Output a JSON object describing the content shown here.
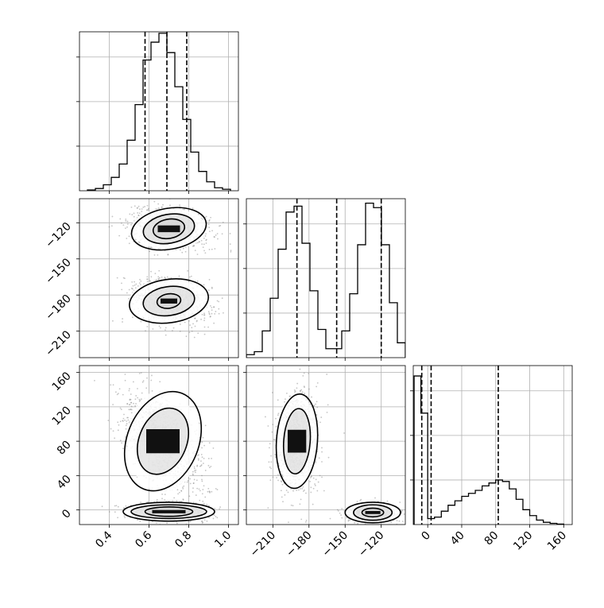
{
  "colors": {
    "axis": "#000000",
    "grid": "#b0b0b0",
    "mark": "#000000",
    "scatter": "#7f7f7f"
  },
  "chart_data": [
    {
      "panel": "p00",
      "type": "histogram",
      "variable_index": 0,
      "xlim": [
        0.25,
        1.05
      ],
      "ylim": [
        0,
        1.07
      ],
      "xgrid": [
        0.4,
        0.6,
        0.8,
        1.0
      ],
      "ygrid": [
        0.3,
        0.6,
        0.9
      ],
      "bins": [
        0.29,
        0.33,
        0.37,
        0.41,
        0.45,
        0.49,
        0.53,
        0.57,
        0.61,
        0.65,
        0.69,
        0.73,
        0.77,
        0.81,
        0.85,
        0.89,
        0.93,
        0.97,
        1.01
      ],
      "counts": [
        0.005,
        0.015,
        0.04,
        0.09,
        0.18,
        0.34,
        0.58,
        0.88,
        1.0,
        1.06,
        0.93,
        0.7,
        0.48,
        0.26,
        0.13,
        0.06,
        0.02,
        0.01
      ],
      "quantiles": [
        0.58,
        0.69,
        0.79
      ]
    },
    {
      "panel": "p10",
      "type": "contour2d",
      "variables": [
        0,
        1
      ],
      "xlim": [
        0.25,
        1.05
      ],
      "ylim": [
        -232,
        -100
      ],
      "xgrid": [
        0.4,
        0.6,
        0.8,
        1.0
      ],
      "ygrid": [
        -120,
        -150,
        -180,
        -210
      ],
      "yticks": [
        "−120",
        "−150",
        "−180",
        "−210"
      ],
      "modes": [
        {
          "cx": 0.7,
          "cy": -125,
          "levels": [
            [
              0.19,
              17,
              -0.25
            ],
            [
              0.13,
              12,
              -0.25
            ],
            [
              0.08,
              8,
              -0.25
            ]
          ]
        },
        {
          "cx": 0.7,
          "cy": -185,
          "levels": [
            [
              0.2,
              18,
              -0.2
            ],
            [
              0.13,
              12,
              -0.2
            ],
            [
              0.06,
              6,
              -0.2
            ]
          ]
        }
      ]
    },
    {
      "panel": "p11",
      "type": "histogram",
      "variable_index": 1,
      "xlim": [
        -232,
        -100
      ],
      "ylim": [
        0,
        1.07
      ],
      "xgrid": [
        -210,
        -180,
        -150,
        -120
      ],
      "ygrid": [
        0.3,
        0.6,
        0.9
      ],
      "bins": [
        -232,
        -225.4,
        -218.8,
        -212.2,
        -205.6,
        -199,
        -192.4,
        -185.8,
        -179.2,
        -172.6,
        -166,
        -159.4,
        -152.8,
        -146.2,
        -139.6,
        -133,
        -126.4,
        -119.8,
        -113.2,
        -106.6,
        -100
      ],
      "counts": [
        0.02,
        0.04,
        0.18,
        0.4,
        0.73,
        0.98,
        1.02,
        0.77,
        0.45,
        0.19,
        0.06,
        0.06,
        0.18,
        0.43,
        0.76,
        1.04,
        1.01,
        0.76,
        0.37,
        0.1
      ],
      "quantiles": [
        -190,
        -157,
        -120
      ]
    },
    {
      "panel": "p20",
      "type": "contour2d",
      "variables": [
        0,
        2
      ],
      "xlim": [
        0.25,
        1.05
      ],
      "ylim": [
        -17,
        168
      ],
      "xgrid": [
        0.4,
        0.6,
        0.8,
        1.0
      ],
      "ygrid": [
        0,
        40,
        80,
        120,
        160
      ],
      "yticks": [
        "0",
        "40",
        "80",
        "120",
        "160"
      ],
      "xticks": [
        "0.4",
        "0.6",
        "0.8",
        "1.0"
      ],
      "modes": [
        {
          "cx": 0.67,
          "cy": 80,
          "levels": [
            [
              0.18,
              60,
              0.55
            ],
            [
              0.12,
              40,
              0.55
            ]
          ]
        },
        {
          "cx": 0.7,
          "cy": -2,
          "levels": [
            [
              0.23,
              11,
              0
            ],
            [
              0.19,
              8,
              0
            ],
            [
              0.12,
              5.5,
              0
            ]
          ]
        }
      ]
    },
    {
      "panel": "p21",
      "type": "contour2d",
      "variables": [
        1,
        2
      ],
      "xlim": [
        -232,
        -100
      ],
      "ylim": [
        -17,
        168
      ],
      "xgrid": [
        -210,
        -180,
        -150,
        -120
      ],
      "ygrid": [
        0,
        40,
        80,
        120,
        160
      ],
      "xticks": [
        "−210",
        "−180",
        "−150",
        "−120"
      ],
      "modes": [
        {
          "cx": -190,
          "cy": 80,
          "levels": [
            [
              17,
              55,
              0.1
            ],
            [
              11,
              38,
              0.1
            ]
          ]
        },
        {
          "cx": -127,
          "cy": -3,
          "levels": [
            [
              23,
              12,
              0
            ],
            [
              16,
              9,
              0
            ],
            [
              9,
              5,
              0
            ]
          ]
        }
      ]
    },
    {
      "panel": "p22",
      "type": "histogram",
      "variable_index": 2,
      "xlim": [
        -17,
        170
      ],
      "ylim": [
        0,
        1.07
      ],
      "xgrid": [
        0,
        40,
        80,
        120,
        160
      ],
      "ygrid": [
        0.3,
        0.6,
        0.9
      ],
      "xticks": [
        "0",
        "40",
        "80",
        "120",
        "160"
      ],
      "bins": [
        -16,
        -8,
        0,
        8,
        16,
        24,
        32,
        40,
        48,
        56,
        64,
        72,
        80,
        88,
        96,
        104,
        112,
        120,
        128,
        136,
        144,
        152,
        160
      ],
      "counts": [
        1.0,
        0.75,
        0.04,
        0.05,
        0.09,
        0.13,
        0.16,
        0.19,
        0.21,
        0.23,
        0.26,
        0.28,
        0.3,
        0.29,
        0.24,
        0.17,
        0.1,
        0.06,
        0.03,
        0.015,
        0.008,
        0.003
      ],
      "quantiles": [
        -7,
        4,
        83
      ]
    }
  ]
}
